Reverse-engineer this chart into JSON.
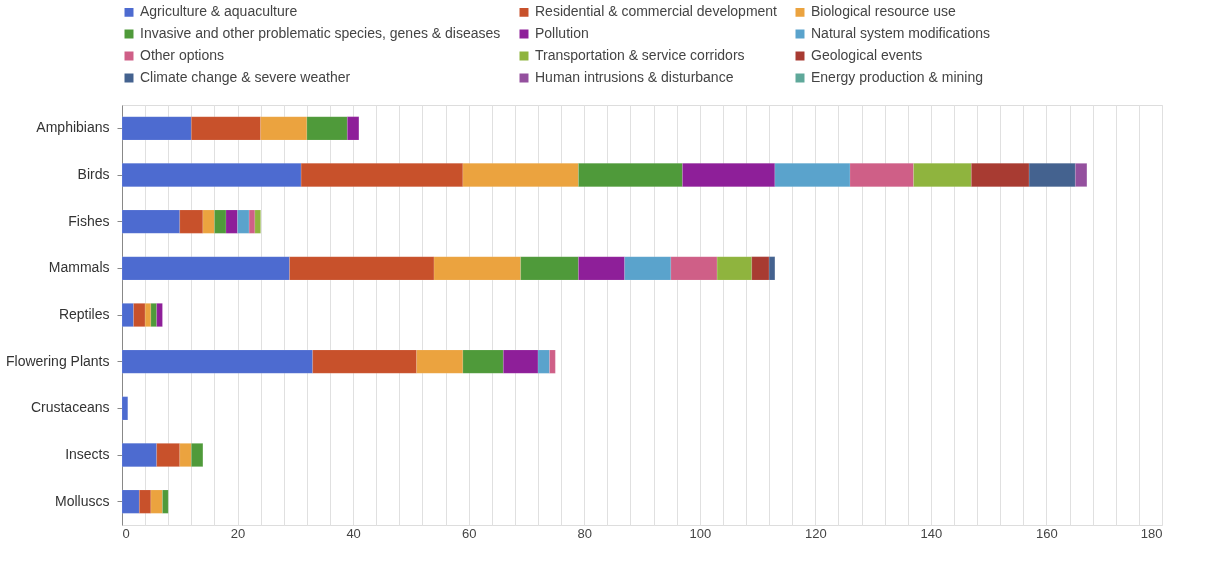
{
  "chart_data": {
    "type": "bar",
    "orientation": "horizontal",
    "stacked": true,
    "legend": "top",
    "grid": "x",
    "categories": [
      "Amphibians",
      "Birds",
      "Fishes",
      "Mammals",
      "Reptiles",
      "Flowering Plants",
      "Crustaceans",
      "Insects",
      "Molluscs"
    ],
    "xlim": [
      0,
      180
    ],
    "xticks": [
      0,
      {
        "value": 4,
        "label": null
      },
      {
        "value": 8,
        "label": null
      },
      {
        "value": 12,
        "label": null
      },
      {
        "value": 16,
        "label": null
      },
      20,
      {
        "value": 24,
        "label": null
      },
      {
        "value": 28,
        "label": null
      },
      {
        "value": 32,
        "label": null
      },
      {
        "value": 36,
        "label": null
      },
      40,
      {
        "value": 44,
        "label": null
      },
      {
        "value": 48,
        "label": null
      },
      {
        "value": 52,
        "label": null
      },
      {
        "value": 56,
        "label": null
      },
      60,
      {
        "value": 64,
        "label": null
      },
      {
        "value": 68,
        "label": null
      },
      {
        "value": 72,
        "label": null
      },
      {
        "value": 76,
        "label": null
      },
      80,
      {
        "value": 84,
        "label": null
      },
      {
        "value": 88,
        "label": null
      },
      {
        "value": 92,
        "label": null
      },
      {
        "value": 96,
        "label": null
      },
      100,
      {
        "value": 104,
        "label": null
      },
      {
        "value": 108,
        "label": null
      },
      {
        "value": 112,
        "label": null
      },
      {
        "value": 116,
        "label": null
      },
      120,
      {
        "value": 124,
        "label": null
      },
      {
        "value": 128,
        "label": null
      },
      {
        "value": 132,
        "label": null
      },
      {
        "value": 136,
        "label": null
      },
      140,
      {
        "value": 144,
        "label": null
      },
      {
        "value": 148,
        "label": null
      },
      {
        "value": 152,
        "label": null
      },
      {
        "value": 156,
        "label": null
      },
      160,
      {
        "value": 164,
        "label": null
      },
      {
        "value": 168,
        "label": null
      },
      {
        "value": 172,
        "label": null
      },
      {
        "value": 176,
        "label": null
      },
      180
    ],
    "series": [
      {
        "name": "Agriculture & aquaculture",
        "color": "#4d6bd0",
        "values": [
          12,
          31,
          10,
          29,
          2,
          33,
          1,
          6,
          3
        ]
      },
      {
        "name": "Residential & commercial development",
        "color": "#c8512b",
        "values": [
          12,
          28,
          4,
          25,
          2,
          18,
          null,
          4,
          2
        ]
      },
      {
        "name": "Biological resource use",
        "color": "#eba33f",
        "values": [
          8,
          20,
          2,
          15,
          1,
          8,
          null,
          2,
          2
        ]
      },
      {
        "name": "Invasive and other problematic species, genes & diseases",
        "color": "#4f9a3a",
        "values": [
          7,
          18,
          2,
          10,
          1,
          7,
          null,
          2,
          1
        ]
      },
      {
        "name": "Pollution",
        "color": "#8e1f99",
        "values": [
          2,
          16,
          2,
          8,
          1,
          6,
          null,
          null,
          null
        ]
      },
      {
        "name": "Natural system modifications",
        "color": "#5aa3cc",
        "values": [
          null,
          13,
          2,
          8,
          null,
          2,
          null,
          null,
          null
        ]
      },
      {
        "name": "Other options",
        "color": "#cf5f87",
        "values": [
          null,
          11,
          1,
          8,
          null,
          1,
          null,
          null,
          null
        ]
      },
      {
        "name": "Transportation & service corridors",
        "color": "#8fb43e",
        "values": [
          null,
          10,
          1,
          6,
          null,
          null,
          null,
          null,
          null
        ]
      },
      {
        "name": "Geological events",
        "color": "#a83b32",
        "values": [
          null,
          10,
          null,
          3,
          null,
          null,
          null,
          null,
          null
        ]
      },
      {
        "name": "Climate change & severe weather",
        "color": "#44628f",
        "values": [
          null,
          8,
          null,
          1,
          null,
          null,
          null,
          null,
          null
        ]
      },
      {
        "name": "Human intrusions & disturbance",
        "color": "#94509e",
        "values": [
          null,
          2,
          null,
          null,
          null,
          null,
          null,
          null,
          null
        ]
      },
      {
        "name": "Energy production & mining",
        "color": "#5fa89a",
        "values": [
          null,
          null,
          null,
          null,
          null,
          null,
          null,
          null,
          null
        ]
      }
    ]
  }
}
